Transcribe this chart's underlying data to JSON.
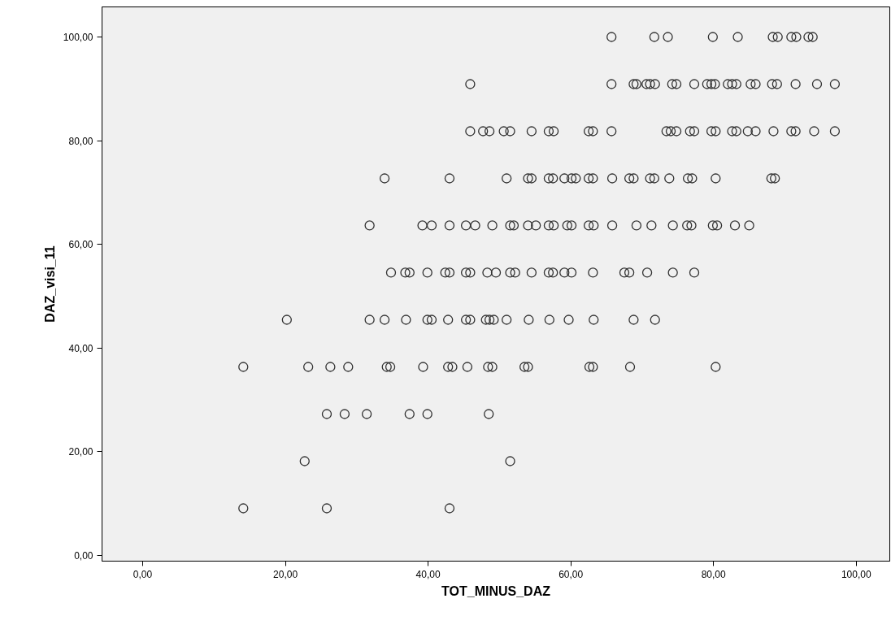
{
  "chart_data": {
    "type": "scatter",
    "xlabel": "TOT_MINUS_DAZ",
    "ylabel": "DAZ_visi_11",
    "xlim": [
      -5.7,
      104.7
    ],
    "ylim": [
      -1.1,
      105.8
    ],
    "xticks": [
      {
        "value": 0,
        "label": "0,00"
      },
      {
        "value": 20,
        "label": "20,00"
      },
      {
        "value": 40,
        "label": "40,00"
      },
      {
        "value": 60,
        "label": "60,00"
      },
      {
        "value": 80,
        "label": "80,00"
      },
      {
        "value": 100,
        "label": "100,00"
      }
    ],
    "yticks": [
      {
        "value": 0,
        "label": "0,00"
      },
      {
        "value": 20,
        "label": "20,00"
      },
      {
        "value": 40,
        "label": "40,00"
      },
      {
        "value": 60,
        "label": "60,00"
      },
      {
        "value": 80,
        "label": "80,00"
      },
      {
        "value": 100,
        "label": "100,00"
      }
    ],
    "grid": false,
    "marker": "circle",
    "series": [
      {
        "color": "#333333",
        "x": [
          65.7,
          71.7,
          73.6,
          79.9,
          83.4,
          88.3,
          89.0,
          90.9,
          91.6,
          93.3,
          93.9,
          45.9,
          65.7,
          68.8,
          69.2,
          70.6,
          71.1,
          71.8,
          74.2,
          74.8,
          77.3,
          79.1,
          79.7,
          80.2,
          82.0,
          82.6,
          83.2,
          85.2,
          85.9,
          88.2,
          88.9,
          91.5,
          94.5,
          97.0,
          45.9,
          47.7,
          48.6,
          50.6,
          51.5,
          54.5,
          56.9,
          57.6,
          62.5,
          63.1,
          65.7,
          73.4,
          74.0,
          74.8,
          76.7,
          77.3,
          79.7,
          80.3,
          82.6,
          83.2,
          84.8,
          85.9,
          88.4,
          90.9,
          91.5,
          94.1,
          97.0,
          33.9,
          43.0,
          51.0,
          54.0,
          54.5,
          56.9,
          57.5,
          59.1,
          60.1,
          60.7,
          62.5,
          63.1,
          65.8,
          68.2,
          68.8,
          71.1,
          71.7,
          73.8,
          76.4,
          77.0,
          80.3,
          88.1,
          88.6,
          31.8,
          39.2,
          40.5,
          43.0,
          45.3,
          46.6,
          49.0,
          51.5,
          52.0,
          54.0,
          55.1,
          56.9,
          57.6,
          59.5,
          60.1,
          62.5,
          63.2,
          65.8,
          69.2,
          71.3,
          74.3,
          76.3,
          76.9,
          79.9,
          80.5,
          83.0,
          85.0,
          34.8,
          36.8,
          37.4,
          39.9,
          42.4,
          43.0,
          45.3,
          45.9,
          48.3,
          49.5,
          51.5,
          52.2,
          54.5,
          56.9,
          57.5,
          59.1,
          60.1,
          63.1,
          67.5,
          68.2,
          70.7,
          74.3,
          77.3,
          20.2,
          31.8,
          33.9,
          36.9,
          39.9,
          40.5,
          42.8,
          45.3,
          45.9,
          48.1,
          48.6,
          49.2,
          51.0,
          54.1,
          57.0,
          59.7,
          63.2,
          68.8,
          71.8,
          14.1,
          23.2,
          26.3,
          28.8,
          34.2,
          34.7,
          39.3,
          42.8,
          43.4,
          45.5,
          48.4,
          49.0,
          53.5,
          54.0,
          62.6,
          63.1,
          68.3,
          80.3,
          25.8,
          28.3,
          31.4,
          37.4,
          39.9,
          48.5,
          22.7,
          51.5,
          14.1,
          25.8,
          43.0
        ],
        "values": [
          100,
          100,
          100,
          100,
          100,
          100,
          100,
          100,
          100,
          100,
          100,
          90.91,
          90.91,
          90.91,
          90.91,
          90.91,
          90.91,
          90.91,
          90.91,
          90.91,
          90.91,
          90.91,
          90.91,
          90.91,
          90.91,
          90.91,
          90.91,
          90.91,
          90.91,
          90.91,
          90.91,
          90.91,
          90.91,
          90.91,
          81.82,
          81.82,
          81.82,
          81.82,
          81.82,
          81.82,
          81.82,
          81.82,
          81.82,
          81.82,
          81.82,
          81.82,
          81.82,
          81.82,
          81.82,
          81.82,
          81.82,
          81.82,
          81.82,
          81.82,
          81.82,
          81.82,
          81.82,
          81.82,
          81.82,
          81.82,
          81.82,
          72.73,
          72.73,
          72.73,
          72.73,
          72.73,
          72.73,
          72.73,
          72.73,
          72.73,
          72.73,
          72.73,
          72.73,
          72.73,
          72.73,
          72.73,
          72.73,
          72.73,
          72.73,
          72.73,
          72.73,
          72.73,
          72.73,
          72.73,
          63.64,
          63.64,
          63.64,
          63.64,
          63.64,
          63.64,
          63.64,
          63.64,
          63.64,
          63.64,
          63.64,
          63.64,
          63.64,
          63.64,
          63.64,
          63.64,
          63.64,
          63.64,
          63.64,
          63.64,
          63.64,
          63.64,
          63.64,
          63.64,
          63.64,
          63.64,
          63.64,
          54.55,
          54.55,
          54.55,
          54.55,
          54.55,
          54.55,
          54.55,
          54.55,
          54.55,
          54.55,
          54.55,
          54.55,
          54.55,
          54.55,
          54.55,
          54.55,
          54.55,
          54.55,
          54.55,
          54.55,
          54.55,
          54.55,
          54.55,
          45.45,
          45.45,
          45.45,
          45.45,
          45.45,
          45.45,
          45.45,
          45.45,
          45.45,
          45.45,
          45.45,
          45.45,
          45.45,
          45.45,
          45.45,
          45.45,
          45.45,
          45.45,
          45.45,
          36.36,
          36.36,
          36.36,
          36.36,
          36.36,
          36.36,
          36.36,
          36.36,
          36.36,
          36.36,
          36.36,
          36.36,
          36.36,
          36.36,
          36.36,
          36.36,
          36.36,
          36.36,
          27.27,
          27.27,
          27.27,
          27.27,
          27.27,
          27.27,
          18.18,
          18.18,
          9.09,
          9.09,
          9.09
        ]
      }
    ]
  }
}
